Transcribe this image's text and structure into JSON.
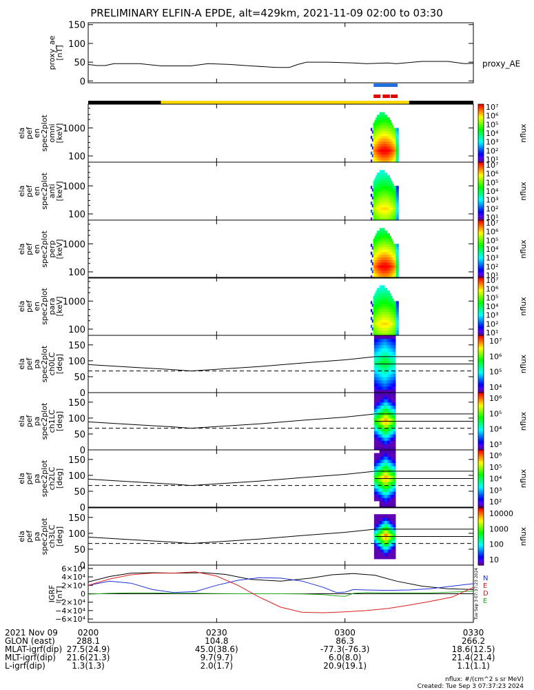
{
  "chart_data": {
    "type": "line",
    "title": "PRELIMINARY ELFIN-A EPDE, alt=429km, 2021-11-09 02:00 to 03:30",
    "x_range": [
      0,
      90
    ],
    "x_unit": "minutes after 0200 UT",
    "x_ticks": [
      {
        "t": 0,
        "label": "0200"
      },
      {
        "t": 30,
        "label": "0230"
      },
      {
        "t": 60,
        "label": "0300"
      },
      {
        "t": 90,
        "label": "0330"
      }
    ],
    "proxy_ae": {
      "ylabel": [
        "proxy_ae",
        "[nT]"
      ],
      "ylim": [
        -5,
        155
      ],
      "yticks": [
        0,
        50,
        100,
        150
      ],
      "legend": "proxy_AE",
      "series": {
        "t": [
          0,
          2,
          4,
          6,
          12,
          17,
          19,
          24,
          28,
          33,
          38,
          44,
          47,
          49,
          51,
          56,
          62,
          65,
          70,
          72,
          78,
          84,
          88,
          90
        ],
        "v": [
          44,
          41,
          41,
          46,
          46,
          40,
          40,
          40,
          46,
          44,
          40,
          36,
          36,
          44,
          50,
          50,
          48,
          46,
          48,
          46,
          52,
          52,
          46,
          47
        ]
      }
    },
    "orbit_bar": {
      "segments": [
        {
          "from": 0,
          "to": 17,
          "color": "#000000"
        },
        {
          "from": 17,
          "to": 75,
          "color": "#ffd800"
        },
        {
          "from": 75,
          "to": 90,
          "color": "#000000"
        }
      ]
    },
    "science_zone_markers": [
      {
        "from": 66.7,
        "to": 72.3,
        "color": "#2070e0"
      },
      {
        "from": 66.7,
        "to": 68.3,
        "color": "#e00000"
      },
      {
        "from": 68.8,
        "to": 70.5,
        "color": "#e00000"
      },
      {
        "from": 70.7,
        "to": 72.3,
        "color": "#e00000"
      }
    ],
    "energy_panels": [
      {
        "ylabel": [
          "ela",
          "pef",
          "en",
          "spec2plot",
          "omni",
          "[keV]"
        ],
        "yticks": [
          100,
          1000
        ],
        "ylim": [
          60,
          7000
        ],
        "cbar_min": 1,
        "cbar_max": 7,
        "cbar_title": "nflux",
        "cbar_labels": [
          "10⁷",
          "10⁶",
          "10⁵",
          "10⁴",
          "10³",
          "10²",
          "10¹"
        ]
      },
      {
        "ylabel": [
          "ela",
          "pef",
          "en",
          "spec2plot",
          "anti",
          "[keV]"
        ],
        "yticks": [
          100,
          1000
        ],
        "ylim": [
          60,
          7000
        ],
        "cbar_min": 1,
        "cbar_max": 7,
        "cbar_title": "nflux",
        "cbar_labels": [
          "10⁷",
          "10⁶",
          "10⁵",
          "10⁴",
          "10³",
          "10²",
          "10¹"
        ]
      },
      {
        "ylabel": [
          "ela",
          "pef",
          "en",
          "spec2plot",
          "perp",
          "[keV]"
        ],
        "yticks": [
          100,
          1000
        ],
        "ylim": [
          60,
          7000
        ],
        "cbar_min": 1,
        "cbar_max": 7,
        "cbar_title": "nflux",
        "cbar_labels": [
          "10⁷",
          "10⁶",
          "10⁵",
          "10⁴",
          "10³",
          "10²",
          "10¹"
        ]
      },
      {
        "ylabel": [
          "ela",
          "pef",
          "en",
          "spec2plot",
          "para",
          "[keV]"
        ],
        "yticks": [
          100,
          1000
        ],
        "ylim": [
          60,
          7000
        ],
        "cbar_min": 1,
        "cbar_max": 7,
        "cbar_title": "nflux",
        "cbar_labels": [
          "10⁷",
          "10⁶",
          "10⁵",
          "10⁴",
          "10³",
          "10²",
          "10¹"
        ]
      }
    ],
    "pa_panels": [
      {
        "ylabel": [
          "ela",
          "pef",
          "pa",
          "spec2plot",
          "ch0LC",
          "[deg]"
        ],
        "yticks": [
          0,
          50,
          100,
          150
        ],
        "ylim": [
          0,
          180
        ],
        "cbar_labels": [
          "10⁷",
          "10⁶",
          "10⁵",
          "10⁴"
        ],
        "cbar_title": "nflux"
      },
      {
        "ylabel": [
          "ela",
          "pef",
          "pa",
          "spec2plot",
          "ch1LC",
          "[deg]"
        ],
        "yticks": [
          0,
          50,
          100,
          150
        ],
        "ylim": [
          0,
          180
        ],
        "cbar_labels": [
          "10⁶",
          "10⁵",
          "10⁴",
          "10³"
        ],
        "cbar_title": "nflux"
      },
      {
        "ylabel": [
          "ela",
          "pef",
          "pa",
          "spec2plot",
          "ch2LC",
          "[deg]"
        ],
        "yticks": [
          0,
          50,
          100,
          150
        ],
        "ylim": [
          0,
          180
        ],
        "cbar_labels": [
          "10⁶",
          "10⁵",
          "10⁴",
          "10³",
          "10²"
        ],
        "cbar_title": "nflux"
      },
      {
        "ylabel": [
          "ela",
          "pef",
          "pa",
          "spec2plot",
          "ch3LC",
          "[deg]"
        ],
        "yticks": [
          0,
          50,
          100,
          150
        ],
        "ylim": [
          0,
          180
        ],
        "cbar_labels": [
          "10000",
          "1000",
          "100",
          "10"
        ],
        "cbar_title": "nflux"
      }
    ],
    "pa_lines": {
      "loss_cone_t": [
        0,
        10,
        20,
        24,
        30,
        40,
        50,
        60,
        65,
        67
      ],
      "loss_cone_v": [
        88,
        80,
        72,
        68,
        73,
        82,
        93,
        103,
        110,
        113
      ],
      "solid_level": 90,
      "dashed_level": 68
    },
    "igrf_panel": {
      "ylabel": [
        "IGRF",
        "[nT]"
      ],
      "yticks": [
        -60000,
        -40000,
        -20000,
        0,
        20000,
        40000,
        60000
      ],
      "ytick_labels": [
        "−6×10⁴",
        "−4×10⁴",
        "−2×10⁴",
        "0",
        "2×10⁴",
        "4×10⁴",
        "6×10⁴"
      ],
      "ylim": [
        -68000,
        68000
      ],
      "legend": [
        "N",
        "E",
        "D",
        "E"
      ],
      "series": [
        {
          "name": "total",
          "color": "#000000",
          "t": [
            0,
            5,
            10,
            15,
            20,
            27,
            32,
            38,
            45,
            52,
            57,
            62,
            67,
            72,
            78,
            84,
            90
          ],
          "v": [
            28000,
            41000,
            49000,
            50000,
            49000,
            50000,
            46000,
            34000,
            30000,
            37000,
            45000,
            48000,
            44000,
            30000,
            18000,
            12000,
            10000
          ]
        },
        {
          "name": "north",
          "color": "#1c2ed8",
          "t": [
            0,
            5,
            10,
            15,
            20,
            25,
            30,
            35,
            40,
            45,
            50,
            55,
            58,
            60,
            62,
            65,
            70,
            75,
            80,
            85,
            90
          ],
          "v": [
            20000,
            30000,
            25000,
            10000,
            3000,
            5000,
            20000,
            32000,
            38000,
            37000,
            30000,
            15000,
            3000,
            4000,
            10000,
            9000,
            8000,
            9000,
            12000,
            18000,
            24000
          ]
        },
        {
          "name": "east",
          "color": "#22aa1a",
          "t": [
            0,
            5,
            10,
            15,
            20,
            25,
            30,
            35,
            40,
            45,
            50,
            55,
            58,
            60,
            62,
            65,
            70,
            75,
            80,
            85,
            90
          ],
          "v": [
            -1000,
            1000,
            2000,
            2000,
            1000,
            1000,
            500,
            0,
            0,
            0,
            -500,
            -2000,
            -5000,
            -6000,
            1000,
            3000,
            2000,
            2000,
            2000,
            4000,
            6000
          ]
        },
        {
          "name": "down",
          "color": "#d81c1c",
          "t": [
            0,
            5,
            10,
            15,
            20,
            25,
            30,
            35,
            40,
            45,
            50,
            55,
            60,
            65,
            70,
            75,
            80,
            85,
            90
          ],
          "v": [
            20000,
            35000,
            45000,
            49000,
            49000,
            52000,
            42000,
            20000,
            -8000,
            -32000,
            -44000,
            -45000,
            -43000,
            -40000,
            -35000,
            -27000,
            -18000,
            -8000,
            15000
          ]
        }
      ]
    },
    "ephem_rows": [
      {
        "label": "2021 Nov 09",
        "values": [
          "0200",
          "0230",
          "0300",
          "0330"
        ]
      },
      {
        "label": "GLON (east)",
        "values": [
          "288.1",
          "104.8",
          "86.3",
          "266.2"
        ]
      },
      {
        "label": "MLAT-igrf(dip)",
        "values": [
          "27.5(24.9)",
          "45.0(38.6)",
          "-77.3(-76.3)",
          "18.6(12.5)"
        ]
      },
      {
        "label": "MLT-igrf(dip)",
        "values": [
          "21.6(21.3)",
          "9.7(9.7)",
          "6.0(8.0)",
          "21.4(21.4)"
        ]
      },
      {
        "label": "L-igrf(dip)",
        "values": [
          "1.3(1.3)",
          "2.0(1.7)",
          "20.9(19.1)",
          "1.1(1.1)"
        ]
      }
    ],
    "footnote_units": "nflux: #/(cm^2 s sr MeV)",
    "footnote_created": "Created: Tue Sep  3 07:37:23 2024",
    "side_stamp": "Tue Sep  3 07:37:23 2024"
  }
}
